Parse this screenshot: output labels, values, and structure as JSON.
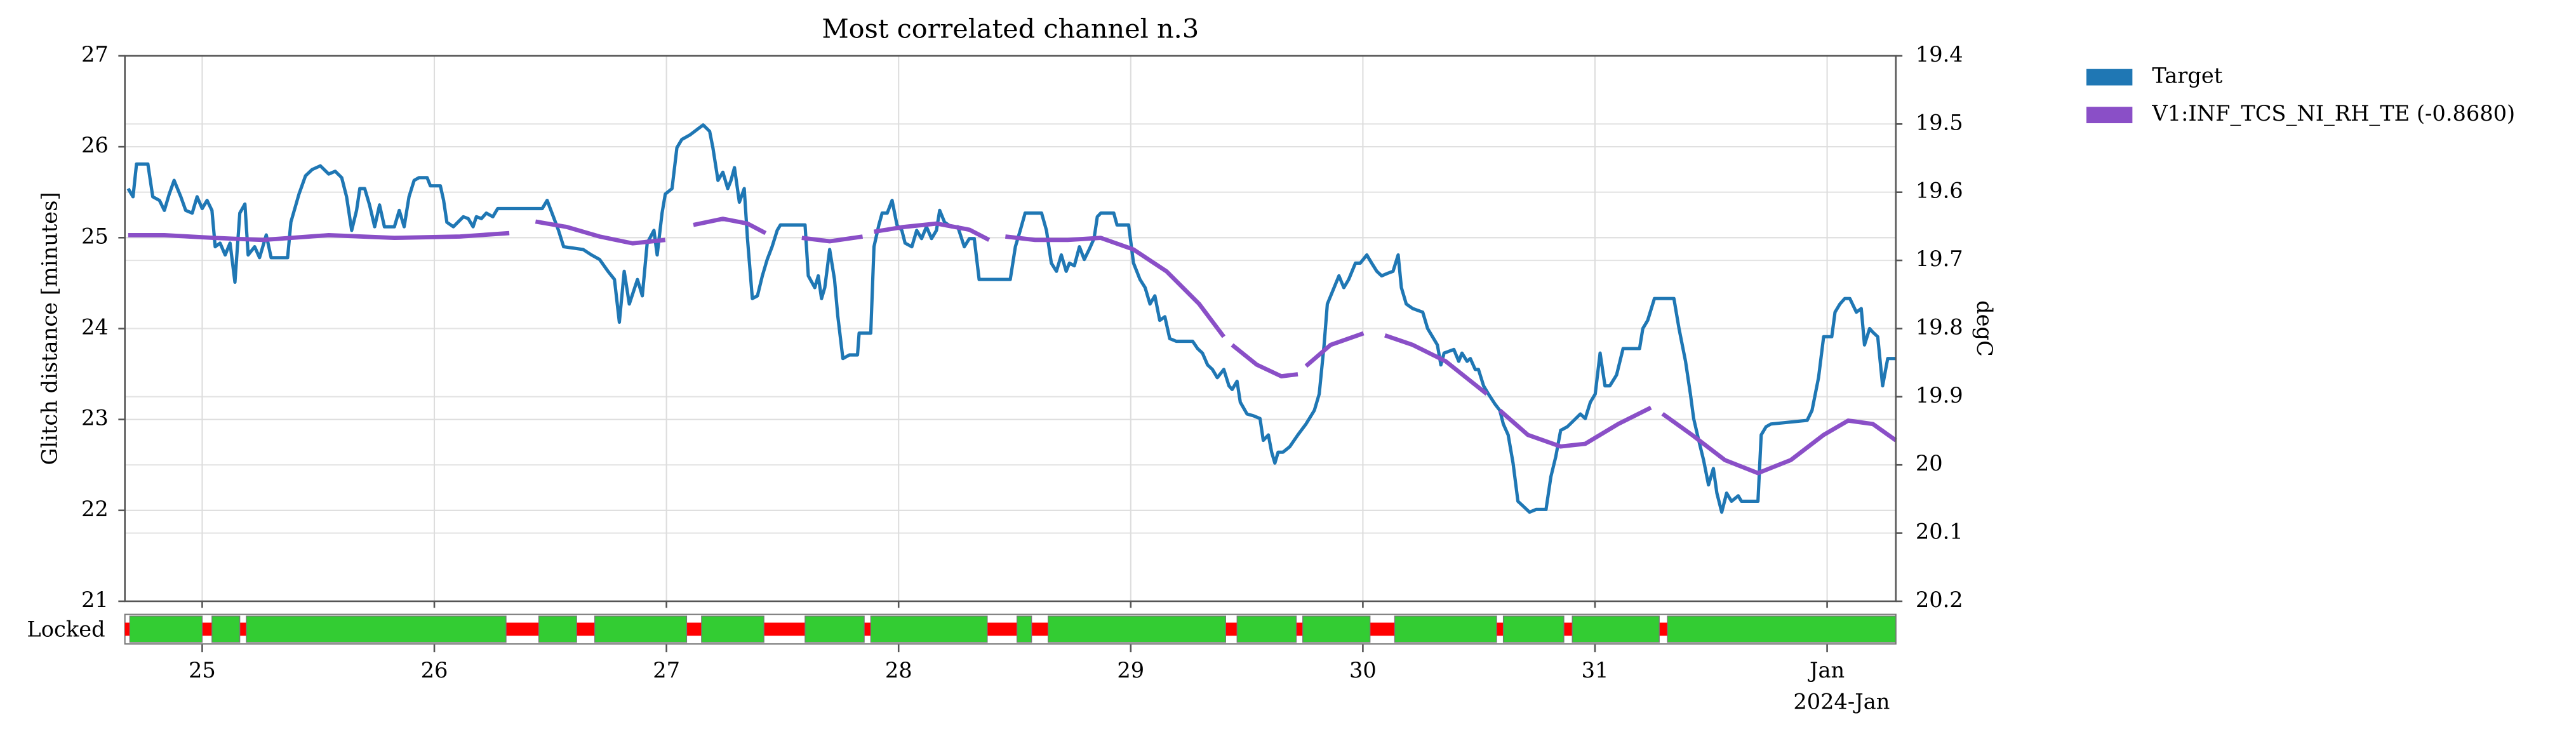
{
  "chart_data": {
    "type": "line",
    "title": "Most correlated channel n.3",
    "y_label": "Glitch distance [minutes]",
    "y2_label": "degC",
    "x_offset_label": "2024-Jan",
    "xlim": [
      24.667,
      32.296
    ],
    "xticks": [
      25,
      26,
      27,
      28,
      29,
      30,
      31,
      {
        "value": 32,
        "label": "Jan"
      }
    ],
    "ylim": [
      21,
      27
    ],
    "yticks": [
      21,
      22,
      23,
      24,
      25,
      26,
      27
    ],
    "y2lim": [
      20.2,
      19.4
    ],
    "y2ticks": [
      19.4,
      19.5,
      19.6,
      19.7,
      19.8,
      19.9,
      20.0,
      20.1,
      20.2
    ],
    "grid": true,
    "legend_position": "outside-upper-right",
    "series": [
      {
        "name": "Target",
        "color": "#1f77b4",
        "axis": "y",
        "x": [
          24.681,
          24.702,
          24.717,
          24.766,
          24.787,
          24.816,
          24.837,
          24.858,
          24.879,
          24.908,
          24.929,
          24.957,
          24.978,
          25.0,
          25.021,
          25.042,
          25.056,
          25.077,
          25.099,
          25.12,
          25.141,
          25.162,
          25.184,
          25.198,
          25.226,
          25.247,
          25.276,
          25.297,
          25.368,
          25.382,
          25.417,
          25.445,
          25.474,
          25.509,
          25.545,
          25.573,
          25.601,
          25.622,
          25.644,
          25.665,
          25.679,
          25.7,
          25.721,
          25.743,
          25.764,
          25.785,
          25.828,
          25.849,
          25.87,
          25.891,
          25.913,
          25.934,
          25.969,
          25.983,
          26.026,
          26.04,
          26.054,
          26.082,
          26.125,
          26.146,
          26.167,
          26.181,
          26.203,
          26.224,
          26.252,
          26.273,
          26.295,
          26.465,
          26.486,
          26.507,
          26.535,
          26.557,
          26.641,
          26.677,
          26.712,
          26.748,
          26.776,
          26.797,
          26.818,
          26.84,
          26.875,
          26.896,
          26.917,
          26.946,
          26.96,
          26.981,
          26.995,
          27.024,
          27.045,
          27.066,
          27.101,
          27.137,
          27.158,
          27.186,
          27.2,
          27.222,
          27.243,
          27.264,
          27.278,
          27.293,
          27.314,
          27.335,
          27.349,
          27.37,
          27.392,
          27.413,
          27.434,
          27.455,
          27.477,
          27.491,
          27.597,
          27.611,
          27.639,
          27.654,
          27.668,
          27.682,
          27.703,
          27.724,
          27.738,
          27.76,
          27.788,
          27.823,
          27.83,
          27.88,
          27.894,
          27.915,
          27.929,
          27.951,
          27.972,
          27.993,
          28.014,
          28.028,
          28.057,
          28.078,
          28.099,
          28.12,
          28.142,
          28.163,
          28.177,
          28.198,
          28.227,
          28.255,
          28.283,
          28.305,
          28.326,
          28.347,
          28.481,
          28.503,
          28.524,
          28.545,
          28.616,
          28.637,
          28.658,
          28.68,
          28.701,
          28.722,
          28.736,
          28.757,
          28.779,
          28.8,
          28.821,
          28.842,
          28.856,
          28.871,
          28.927,
          28.941,
          28.991,
          29.012,
          29.04,
          29.062,
          29.083,
          29.104,
          29.125,
          29.147,
          29.168,
          29.196,
          29.267,
          29.288,
          29.309,
          29.331,
          29.352,
          29.373,
          29.401,
          29.423,
          29.437,
          29.458,
          29.472,
          29.501,
          29.529,
          29.557,
          29.571,
          29.593,
          29.607,
          29.621,
          29.635,
          29.656,
          29.685,
          29.72,
          29.755,
          29.791,
          29.812,
          29.833,
          29.847,
          29.876,
          29.897,
          29.918,
          29.939,
          29.968,
          29.989,
          30.017,
          30.038,
          30.06,
          30.081,
          30.109,
          30.13,
          30.152,
          30.166,
          30.187,
          30.215,
          30.258,
          30.279,
          30.3,
          30.321,
          30.336,
          30.35,
          30.392,
          30.413,
          30.427,
          30.449,
          30.463,
          30.484,
          30.498,
          30.52,
          30.541,
          30.569,
          30.59,
          30.605,
          30.626,
          30.647,
          30.668,
          30.689,
          30.718,
          30.746,
          30.789,
          30.81,
          30.831,
          30.852,
          30.881,
          30.909,
          30.937,
          30.958,
          30.98,
          31.001,
          31.022,
          31.043,
          31.064,
          31.093,
          31.121,
          31.192,
          31.206,
          31.227,
          31.256,
          31.34,
          31.362,
          31.39,
          31.411,
          31.425,
          31.447,
          31.468,
          31.489,
          31.51,
          31.525,
          31.546,
          31.567,
          31.588,
          31.617,
          31.631,
          31.702,
          31.716,
          31.737,
          31.758,
          31.914,
          31.935,
          31.963,
          31.985,
          32.02,
          32.034,
          32.055,
          32.076,
          32.098,
          32.126,
          32.147,
          32.161,
          32.183,
          32.197,
          32.218,
          32.239,
          32.261,
          32.296
        ],
        "values": [
          25.54,
          25.45,
          25.81,
          25.81,
          25.45,
          25.41,
          25.3,
          25.48,
          25.63,
          25.45,
          25.3,
          25.27,
          25.45,
          25.32,
          25.41,
          25.3,
          24.9,
          24.94,
          24.81,
          24.94,
          24.51,
          25.27,
          25.37,
          24.81,
          24.9,
          24.78,
          25.03,
          24.78,
          24.78,
          25.17,
          25.48,
          25.68,
          25.75,
          25.79,
          25.7,
          25.73,
          25.66,
          25.45,
          25.08,
          25.3,
          25.54,
          25.54,
          25.36,
          25.12,
          25.36,
          25.12,
          25.12,
          25.3,
          25.12,
          25.45,
          25.63,
          25.66,
          25.66,
          25.57,
          25.57,
          25.41,
          25.17,
          25.12,
          25.23,
          25.21,
          25.12,
          25.23,
          25.21,
          25.27,
          25.23,
          25.32,
          25.32,
          25.32,
          25.41,
          25.27,
          25.08,
          24.9,
          24.87,
          24.81,
          24.76,
          24.63,
          24.54,
          24.07,
          24.63,
          24.27,
          24.54,
          24.36,
          24.94,
          25.08,
          24.81,
          25.27,
          25.48,
          25.54,
          25.99,
          26.08,
          26.13,
          26.2,
          26.24,
          26.17,
          25.99,
          25.63,
          25.72,
          25.54,
          25.63,
          25.77,
          25.39,
          25.54,
          24.99,
          24.33,
          24.36,
          24.58,
          24.76,
          24.9,
          25.08,
          25.14,
          25.14,
          24.58,
          24.45,
          24.58,
          24.33,
          24.45,
          24.87,
          24.54,
          24.14,
          23.67,
          23.71,
          23.71,
          23.95,
          23.95,
          24.9,
          25.14,
          25.27,
          25.27,
          25.41,
          25.14,
          25.08,
          24.94,
          24.9,
          25.08,
          24.99,
          25.12,
          24.99,
          25.08,
          25.3,
          25.17,
          25.12,
          25.12,
          24.9,
          24.99,
          24.99,
          24.54,
          24.54,
          24.9,
          25.08,
          25.27,
          25.27,
          25.08,
          24.72,
          24.63,
          24.81,
          24.63,
          24.72,
          24.69,
          24.9,
          24.76,
          24.87,
          24.99,
          25.23,
          25.27,
          25.27,
          25.14,
          25.14,
          24.72,
          24.54,
          24.45,
          24.27,
          24.36,
          24.09,
          24.13,
          23.89,
          23.86,
          23.86,
          23.78,
          23.73,
          23.6,
          23.55,
          23.46,
          23.55,
          23.37,
          23.33,
          23.42,
          23.19,
          23.06,
          23.04,
          23.01,
          22.77,
          22.83,
          22.64,
          22.52,
          22.64,
          22.64,
          22.7,
          22.83,
          22.95,
          23.1,
          23.28,
          23.82,
          24.27,
          24.45,
          24.58,
          24.45,
          24.54,
          24.72,
          24.72,
          24.81,
          24.72,
          24.63,
          24.58,
          24.61,
          24.63,
          24.81,
          24.45,
          24.27,
          24.22,
          24.18,
          24.0,
          23.91,
          23.82,
          23.6,
          23.73,
          23.77,
          23.64,
          23.73,
          23.64,
          23.67,
          23.55,
          23.55,
          23.37,
          23.28,
          23.17,
          23.1,
          22.95,
          22.83,
          22.52,
          22.1,
          22.05,
          21.98,
          22.01,
          22.01,
          22.37,
          22.59,
          22.88,
          22.92,
          22.99,
          23.06,
          23.01,
          23.19,
          23.28,
          23.73,
          23.37,
          23.37,
          23.49,
          23.78,
          23.78,
          24.0,
          24.09,
          24.33,
          24.33,
          24.0,
          23.64,
          23.28,
          23.01,
          22.77,
          22.55,
          22.28,
          22.46,
          22.19,
          21.98,
          22.19,
          22.1,
          22.16,
          22.1,
          22.1,
          22.83,
          22.92,
          22.95,
          22.99,
          23.1,
          23.46,
          23.91,
          23.91,
          24.18,
          24.27,
          24.33,
          24.33,
          24.18,
          24.22,
          23.82,
          24.0,
          23.96,
          23.91,
          23.37,
          23.67,
          23.67
        ]
      },
      {
        "name": "V1:INF_TCS_NI_RH_TE (-0.8680)",
        "color": "#8a4fc7",
        "axis": "y2",
        "x": [
          24.681,
          24.837,
          25.049,
          25.261,
          25.545,
          25.828,
          26.111,
          26.323,
          26.4,
          26.436,
          26.571,
          26.712,
          26.854,
          26.995,
          27.05,
          27.116,
          27.243,
          27.349,
          27.427,
          27.5,
          27.583,
          27.703,
          27.845,
          27.87,
          27.894,
          28.021,
          28.163,
          28.305,
          28.39,
          28.43,
          28.46,
          28.588,
          28.729,
          28.871,
          29.012,
          29.154,
          29.295,
          29.401,
          29.43,
          29.437,
          29.543,
          29.649,
          29.72,
          29.74,
          29.755,
          29.861,
          30.003,
          30.05,
          30.095,
          30.215,
          30.357,
          30.534,
          30.56,
          30.59,
          30.711,
          30.852,
          30.958,
          31.1,
          31.241,
          31.27,
          31.291,
          31.418,
          31.56,
          31.702,
          31.843,
          31.985,
          32.091,
          32.197,
          32.296
        ],
        "values": [
          19.663,
          19.663,
          19.667,
          19.67,
          19.663,
          19.667,
          19.665,
          19.66,
          null,
          19.643,
          19.651,
          19.665,
          19.675,
          19.67,
          null,
          19.648,
          19.639,
          19.646,
          19.66,
          null,
          19.667,
          19.672,
          19.665,
          null,
          19.658,
          19.651,
          19.646,
          19.655,
          19.67,
          null,
          19.665,
          19.67,
          19.67,
          19.667,
          19.684,
          19.716,
          19.764,
          19.812,
          null,
          19.824,
          19.853,
          19.87,
          19.867,
          null,
          19.855,
          19.824,
          19.807,
          null,
          19.81,
          19.824,
          19.848,
          19.896,
          null,
          19.92,
          19.956,
          19.973,
          19.969,
          19.94,
          19.916,
          null,
          19.925,
          19.956,
          19.993,
          20.012,
          19.993,
          19.956,
          19.935,
          19.94,
          19.964
        ]
      }
    ],
    "locked": {
      "label": "Locked",
      "on_color": "#33cc33",
      "off_color": "#ff0000",
      "segments": [
        [
          24.688,
          25.0
        ],
        [
          25.042,
          25.162
        ],
        [
          25.19,
          26.309
        ],
        [
          26.45,
          26.613
        ],
        [
          26.691,
          27.087
        ],
        [
          27.151,
          27.42
        ],
        [
          27.597,
          27.852
        ],
        [
          27.88,
          28.382
        ],
        [
          28.51,
          28.573
        ],
        [
          28.644,
          29.409
        ],
        [
          29.458,
          29.713
        ],
        [
          29.741,
          30.031
        ],
        [
          30.137,
          30.576
        ],
        [
          30.605,
          30.866
        ],
        [
          30.902,
          31.277
        ],
        [
          31.312,
          32.296
        ]
      ]
    }
  }
}
